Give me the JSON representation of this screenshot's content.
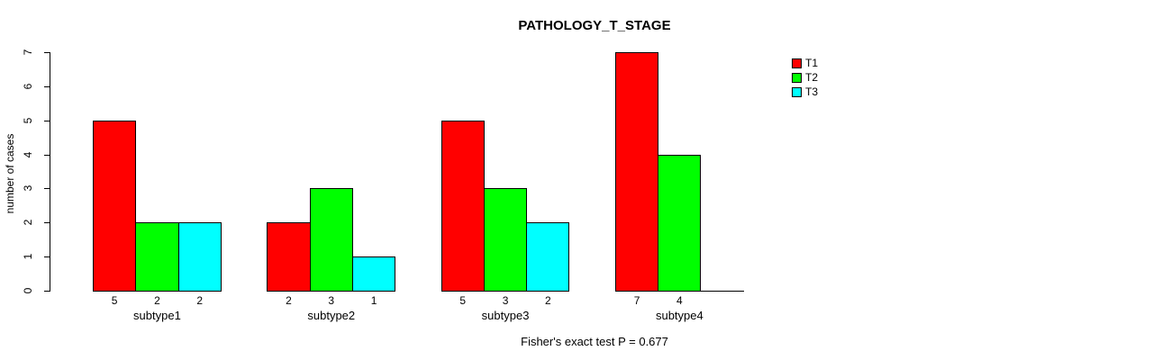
{
  "chart_data": {
    "type": "bar",
    "title": "PATHOLOGY_T_STAGE",
    "xlabel": "",
    "ylabel": "number of cases",
    "categories": [
      "subtype1",
      "subtype2",
      "subtype3",
      "subtype4"
    ],
    "series": [
      {
        "name": "T1",
        "color": "#ff0000",
        "values": [
          5,
          2,
          5,
          7
        ]
      },
      {
        "name": "T2",
        "color": "#00ff00",
        "values": [
          2,
          3,
          3,
          4
        ]
      },
      {
        "name": "T3",
        "color": "#00ffff",
        "values": [
          2,
          1,
          2,
          0
        ]
      }
    ],
    "bar_value_labels": [
      [
        "5",
        "2",
        "2"
      ],
      [
        "2",
        "3",
        "1"
      ],
      [
        "5",
        "3",
        "2"
      ],
      [
        "7",
        "4",
        null
      ]
    ],
    "ylim": [
      0,
      7
    ],
    "yticks": [
      "0",
      "1",
      "2",
      "3",
      "4",
      "5",
      "6",
      "7"
    ],
    "grid": false,
    "legend_position": "right",
    "bar_border_color": "#000000",
    "annotation": "Fisher's exact test P = 0.677"
  }
}
